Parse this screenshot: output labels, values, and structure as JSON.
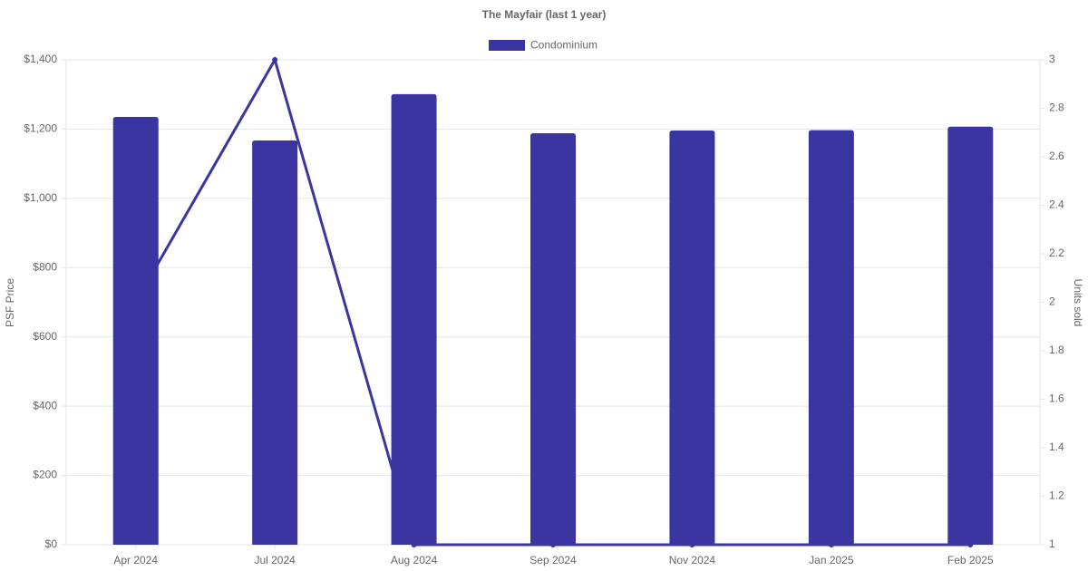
{
  "chart_data": {
    "type": "bar-line",
    "title": "The Mayfair (last 1 year)",
    "y_label": "PSF Price",
    "y2_label": "Units sold",
    "categories": [
      "Apr 2024",
      "Jul 2024",
      "Aug 2024",
      "Sep 2024",
      "Nov 2024",
      "Jan 2025",
      "Feb 2025"
    ],
    "series": [
      {
        "name": "Condominium",
        "type": "bar",
        "color": "#3a35a0",
        "values": [
          1235,
          1167,
          1301,
          1188,
          1196,
          1197,
          1207
        ]
      },
      {
        "type": "line",
        "axis": "y2",
        "color": "#3a35a0",
        "values": [
          2,
          3,
          1,
          1,
          1,
          1,
          1
        ]
      }
    ],
    "ylim": [
      0,
      1400
    ],
    "yticks": [
      {
        "value": 0,
        "label": "$0"
      },
      {
        "value": 200,
        "label": "$200"
      },
      {
        "value": 400,
        "label": "$400"
      },
      {
        "value": 600,
        "label": "$600"
      },
      {
        "value": 800,
        "label": "$800"
      },
      {
        "value": 1000,
        "label": "$1,000"
      },
      {
        "value": 1200,
        "label": "$1,200"
      },
      {
        "value": 1400,
        "label": "$1,400"
      }
    ],
    "y2lim": [
      1,
      3
    ],
    "y2ticks": [
      1,
      1.2,
      1.4,
      1.6,
      1.8,
      2,
      2.2,
      2.4,
      2.6,
      2.8,
      3
    ],
    "grid": true,
    "legend": "top"
  }
}
